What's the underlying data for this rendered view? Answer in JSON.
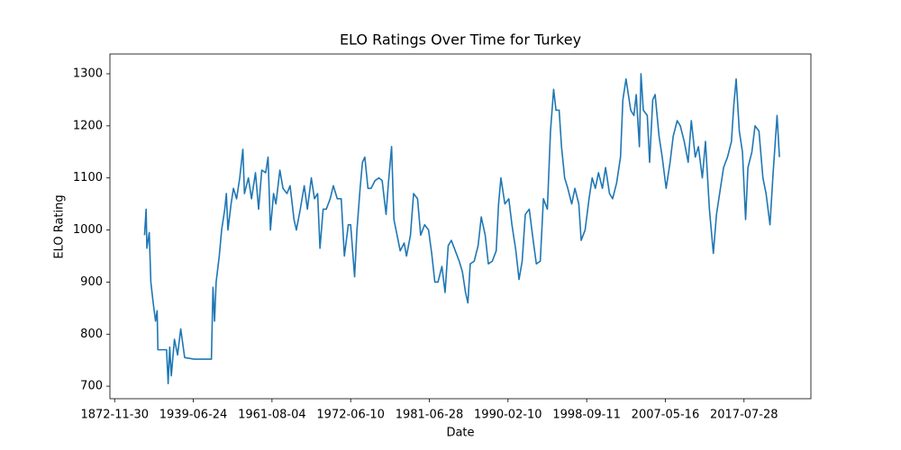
{
  "chart_data": {
    "type": "line",
    "title": "ELO Ratings Over Time for Turkey",
    "xlabel": "Date",
    "ylabel": "ELO Rating",
    "x": [
      38,
      40,
      41,
      44,
      46,
      49,
      52,
      54,
      55,
      61,
      66,
      68,
      70,
      72,
      76,
      80,
      84,
      89,
      101,
      112,
      123,
      125,
      127,
      129,
      133,
      136,
      140,
      142,
      144,
      148,
      151,
      155,
      159,
      163,
      165,
      170,
      174,
      179,
      183,
      187,
      192,
      195,
      198,
      202,
      205,
      210,
      214,
      219,
      223,
      228,
      231,
      236,
      241,
      245,
      250,
      254,
      258,
      261,
      265,
      269,
      274,
      278,
      283,
      288,
      292,
      297,
      300,
      305,
      308,
      312,
      315,
      318,
      322,
      326,
      331,
      336,
      340,
      345,
      348,
      352,
      355,
      359,
      363,
      368,
      371,
      376,
      380,
      385,
      389,
      394,
      399,
      403,
      407,
      411,
      416,
      420,
      424,
      428,
      433,
      438,
      442,
      446,
      449,
      452,
      457,
      462,
      466,
      471,
      475,
      480,
      485,
      488,
      491,
      496,
      501,
      505,
      510,
      514,
      518,
      522,
      527,
      532,
      536,
      541,
      545,
      550,
      554,
      558,
      561,
      565,
      568,
      572,
      576,
      581,
      585,
      590,
      593,
      598,
      603,
      607,
      611,
      615,
      620,
      624,
      629,
      633,
      638,
      643,
      646,
      650,
      653,
      656,
      660,
      663,
      667,
      669,
      672,
      677,
      680,
      684,
      687,
      692,
      696,
      701,
      706,
      710,
      715,
      719,
      724,
      729,
      733,
      738,
      742,
      747,
      751,
      756,
      761,
      765,
      770,
      774,
      779,
      784,
      787,
      790,
      794,
      798,
      802,
      805,
      810,
      814,
      819,
      824,
      828,
      833,
      837,
      842,
      845
    ],
    "series": [
      {
        "name": "Turkey",
        "color": "#1f77b4",
        "values": [
          990,
          1040,
          965,
          995,
          900,
          860,
          825,
          845,
          770,
          770,
          770,
          705,
          775,
          720,
          790,
          760,
          810,
          755,
          752,
          752,
          752,
          890,
          825,
          900,
          950,
          1000,
          1040,
          1070,
          1000,
          1050,
          1080,
          1060,
          1100,
          1155,
          1070,
          1100,
          1060,
          1110,
          1040,
          1115,
          1110,
          1140,
          1000,
          1070,
          1050,
          1115,
          1080,
          1070,
          1085,
          1020,
          1000,
          1040,
          1085,
          1040,
          1100,
          1060,
          1070,
          965,
          1040,
          1040,
          1060,
          1085,
          1060,
          1060,
          950,
          1010,
          1010,
          910,
          1000,
          1080,
          1130,
          1140,
          1080,
          1080,
          1095,
          1100,
          1095,
          1030,
          1090,
          1160,
          1020,
          990,
          960,
          975,
          950,
          990,
          1070,
          1060,
          990,
          1010,
          1000,
          955,
          900,
          900,
          930,
          880,
          970,
          980,
          960,
          940,
          920,
          880,
          860,
          935,
          940,
          970,
          1025,
          990,
          935,
          940,
          960,
          1050,
          1100,
          1050,
          1060,
          1010,
          960,
          905,
          940,
          1030,
          1040,
          980,
          935,
          940,
          1060,
          1040,
          1190,
          1270,
          1230,
          1230,
          1160,
          1100,
          1080,
          1050,
          1080,
          1050,
          980,
          1000,
          1060,
          1100,
          1080,
          1110,
          1080,
          1120,
          1070,
          1060,
          1090,
          1140,
          1250,
          1290,
          1260,
          1230,
          1220,
          1260,
          1160,
          1300,
          1230,
          1220,
          1130,
          1250,
          1260,
          1180,
          1140,
          1080,
          1130,
          1180,
          1210,
          1200,
          1170,
          1130,
          1210,
          1140,
          1160,
          1100,
          1170,
          1040,
          955,
          1030,
          1080,
          1120,
          1140,
          1170,
          1240,
          1290,
          1190,
          1150,
          1020,
          1120,
          1150,
          1200,
          1190,
          1100,
          1070,
          1010,
          1110,
          1220,
          1140
        ]
      }
    ],
    "xlim": [
      -6,
      885
    ],
    "xticks": [
      {
        "value": 0,
        "label": "1872-11-30"
      },
      {
        "value": 100,
        "label": "1939-06-24"
      },
      {
        "value": 200,
        "label": "1961-08-04"
      },
      {
        "value": 300,
        "label": "1972-06-10"
      },
      {
        "value": 400,
        "label": "1981-06-28"
      },
      {
        "value": 500,
        "label": "1990-02-10"
      },
      {
        "value": 600,
        "label": "1998-09-11"
      },
      {
        "value": 700,
        "label": "2007-05-16"
      },
      {
        "value": 800,
        "label": "2017-07-28"
      }
    ],
    "ylim": [
      676,
      1338
    ],
    "yticks": [
      700,
      800,
      900,
      1000,
      1100,
      1200,
      1300
    ]
  }
}
